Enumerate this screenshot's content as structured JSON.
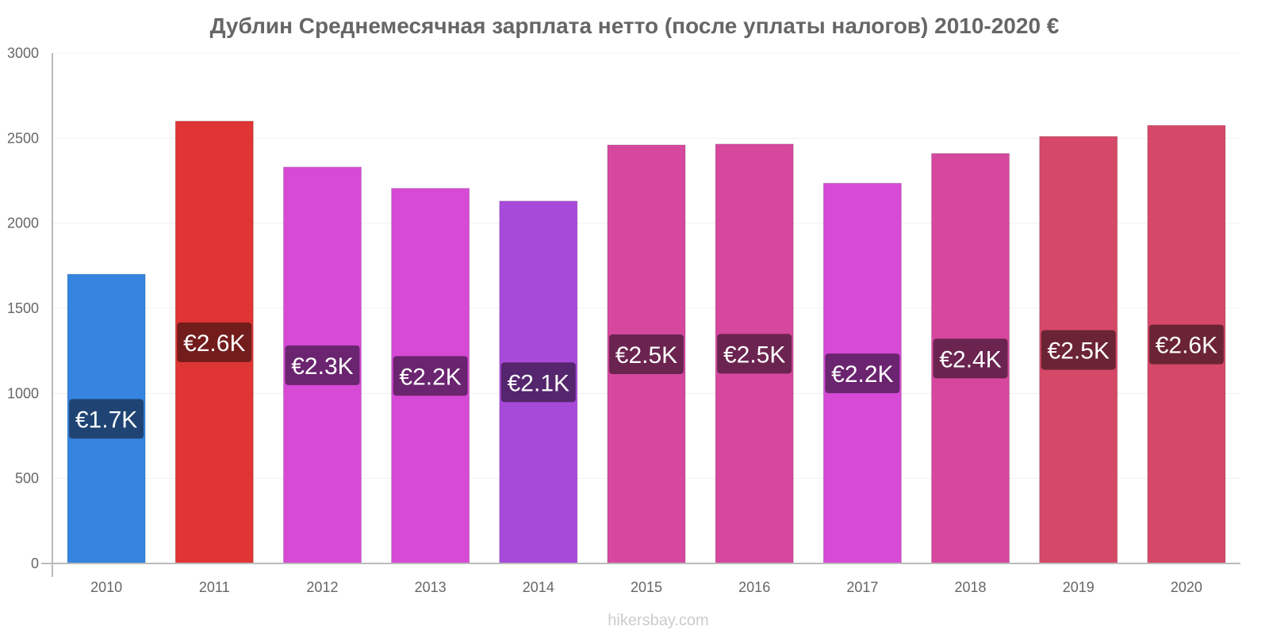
{
  "chart_data": {
    "type": "bar",
    "title": "Дублин Среднемесячная зарплата нетто (после уплаты налогов) 2010-2020 €",
    "xlabel": "",
    "ylabel": "",
    "ylim": [
      0,
      3000
    ],
    "yticks": [
      0,
      500,
      1000,
      1500,
      2000,
      2500,
      3000
    ],
    "grid": true,
    "categories": [
      "2010",
      "2011",
      "2012",
      "2013",
      "2014",
      "2015",
      "2016",
      "2017",
      "2018",
      "2019",
      "2020"
    ],
    "values": [
      1700,
      2600,
      2330,
      2205,
      2130,
      2460,
      2465,
      2235,
      2410,
      2510,
      2575
    ],
    "data_labels": [
      "€1.7K",
      "€2.6K",
      "€2.3K",
      "€2.2K",
      "€2.1K",
      "€2.5K",
      "€2.5K",
      "€2.2K",
      "€2.4K",
      "€2.5K",
      "€2.6K"
    ],
    "bar_colors": [
      "#3584E0",
      "#E03535",
      "#D64AD6",
      "#D64AD6",
      "#A84AD9",
      "#D6489E",
      "#D6489E",
      "#D64AD6",
      "#D6489E",
      "#D64868",
      "#D64868"
    ],
    "label_bg_colors": [
      "#1F4473",
      "#731C1C",
      "#6B2470",
      "#6B2470",
      "#55256E",
      "#6B2450",
      "#6B2450",
      "#6B2470",
      "#6B2450",
      "#6B2435",
      "#6B2435"
    ]
  },
  "footer": "hikersbay.com"
}
